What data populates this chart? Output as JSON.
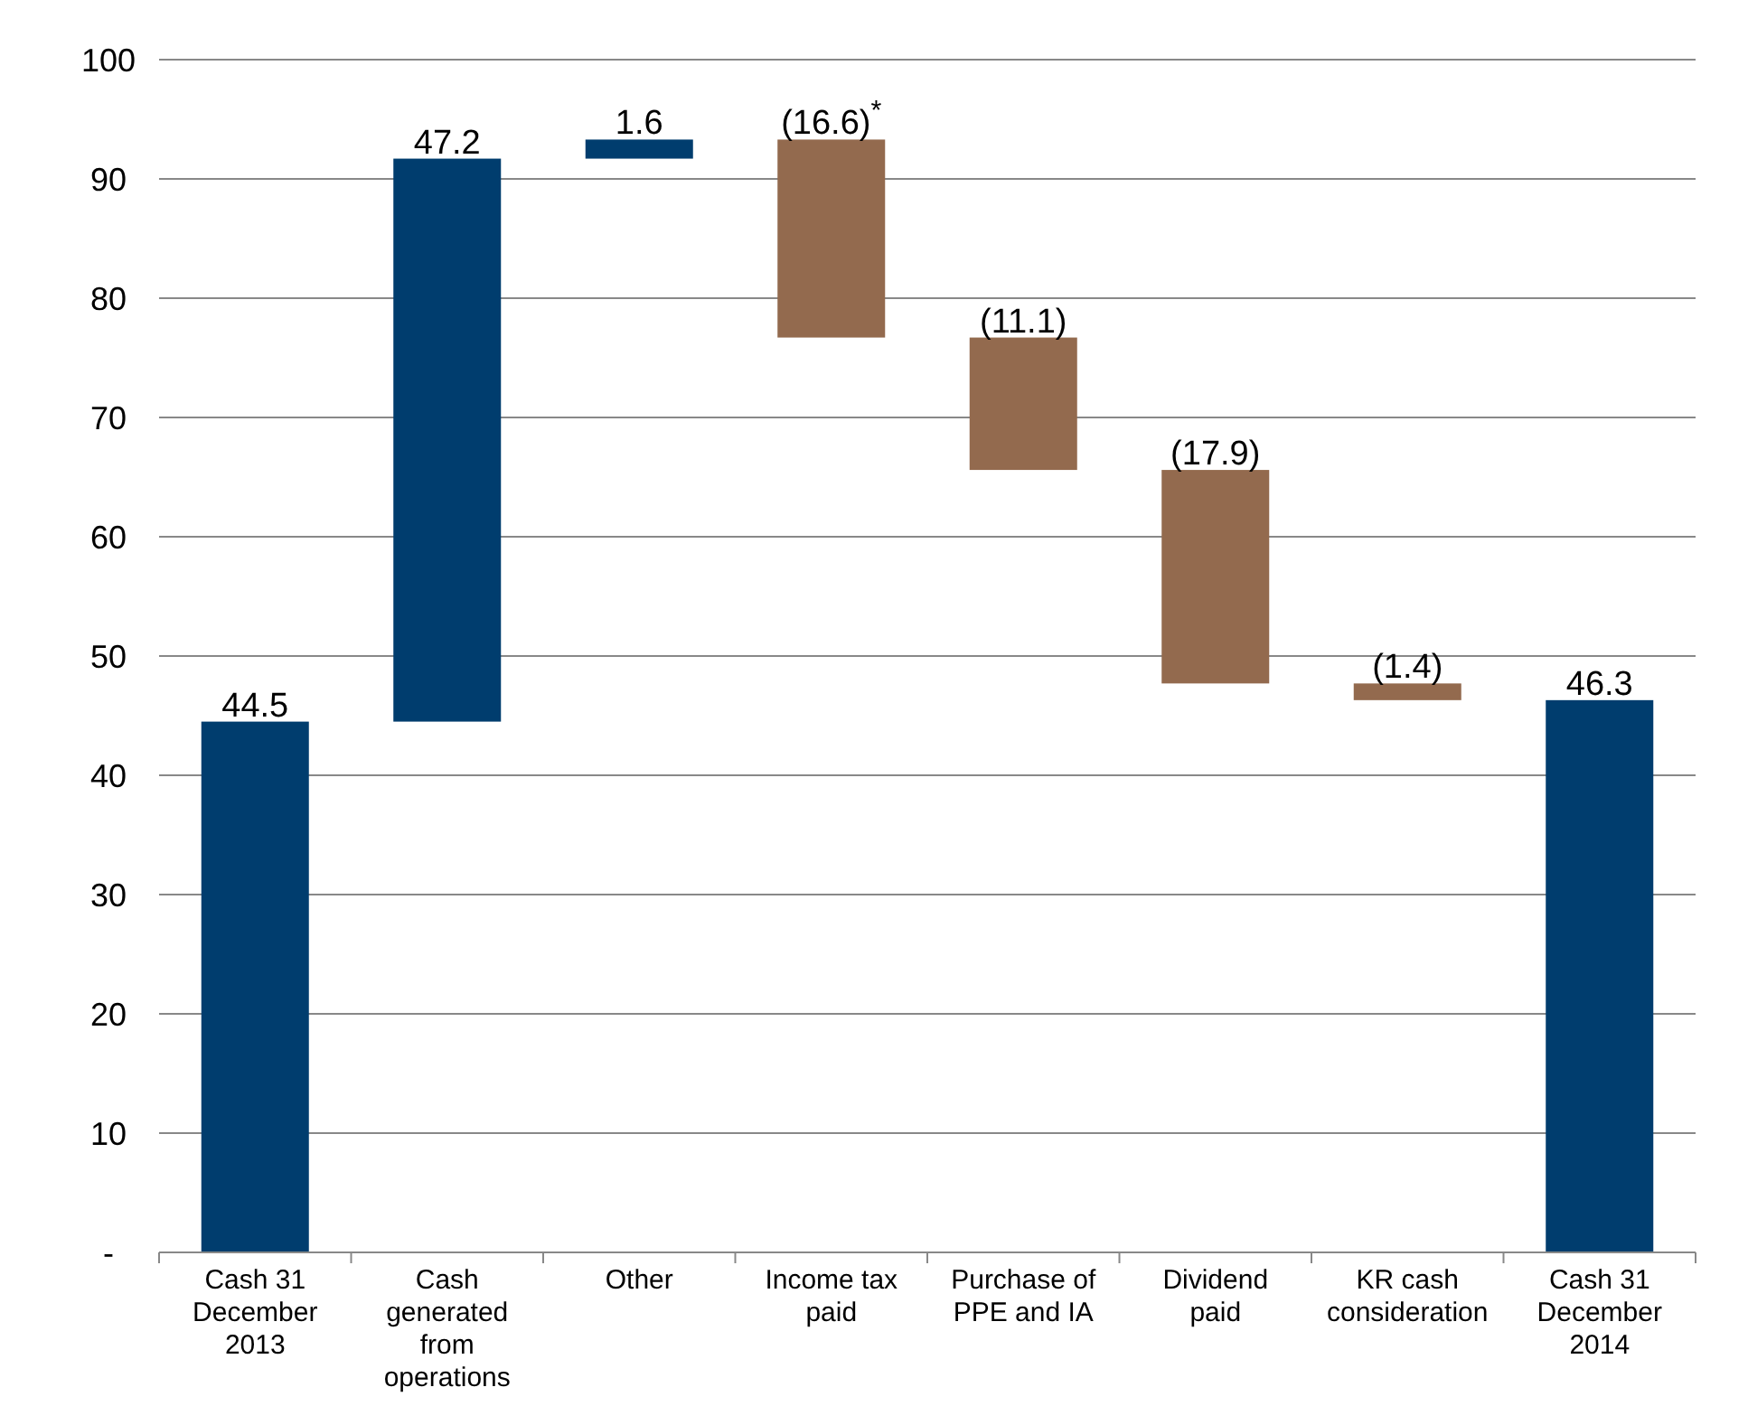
{
  "chart_data": {
    "type": "bar",
    "categories": [
      "Cash 31 December 2013",
      "Cash generated from operations",
      "Other",
      "Income tax paid",
      "Purchase of PPE and IA",
      "Dividend paid",
      "KR cash consideration",
      "Cash 31 December 2014"
    ],
    "values": [
      44.5,
      47.2,
      1.6,
      -16.6,
      -11.1,
      -17.9,
      -1.4,
      46.3
    ],
    "base": [
      0,
      44.5,
      91.7,
      93.3,
      76.7,
      65.6,
      47.7,
      0
    ],
    "colors": [
      "#003d6e",
      "#003d6e",
      "#003d6e",
      "#936a4e",
      "#936a4e",
      "#936a4e",
      "#936a4e",
      "#003d6e"
    ],
    "value_labels": [
      "44.5",
      "47.2",
      "1.6",
      "(16.6)$^{*}$",
      "(11.1)",
      "(17.9)",
      "(1.4)",
      "46.3"
    ],
    "ylim": [
      0,
      100
    ],
    "yticks": [
      {
        "value": 0,
        "label": "-"
      },
      10,
      20,
      30,
      40,
      50,
      60,
      70,
      80,
      90,
      100
    ],
    "grid": "y"
  }
}
